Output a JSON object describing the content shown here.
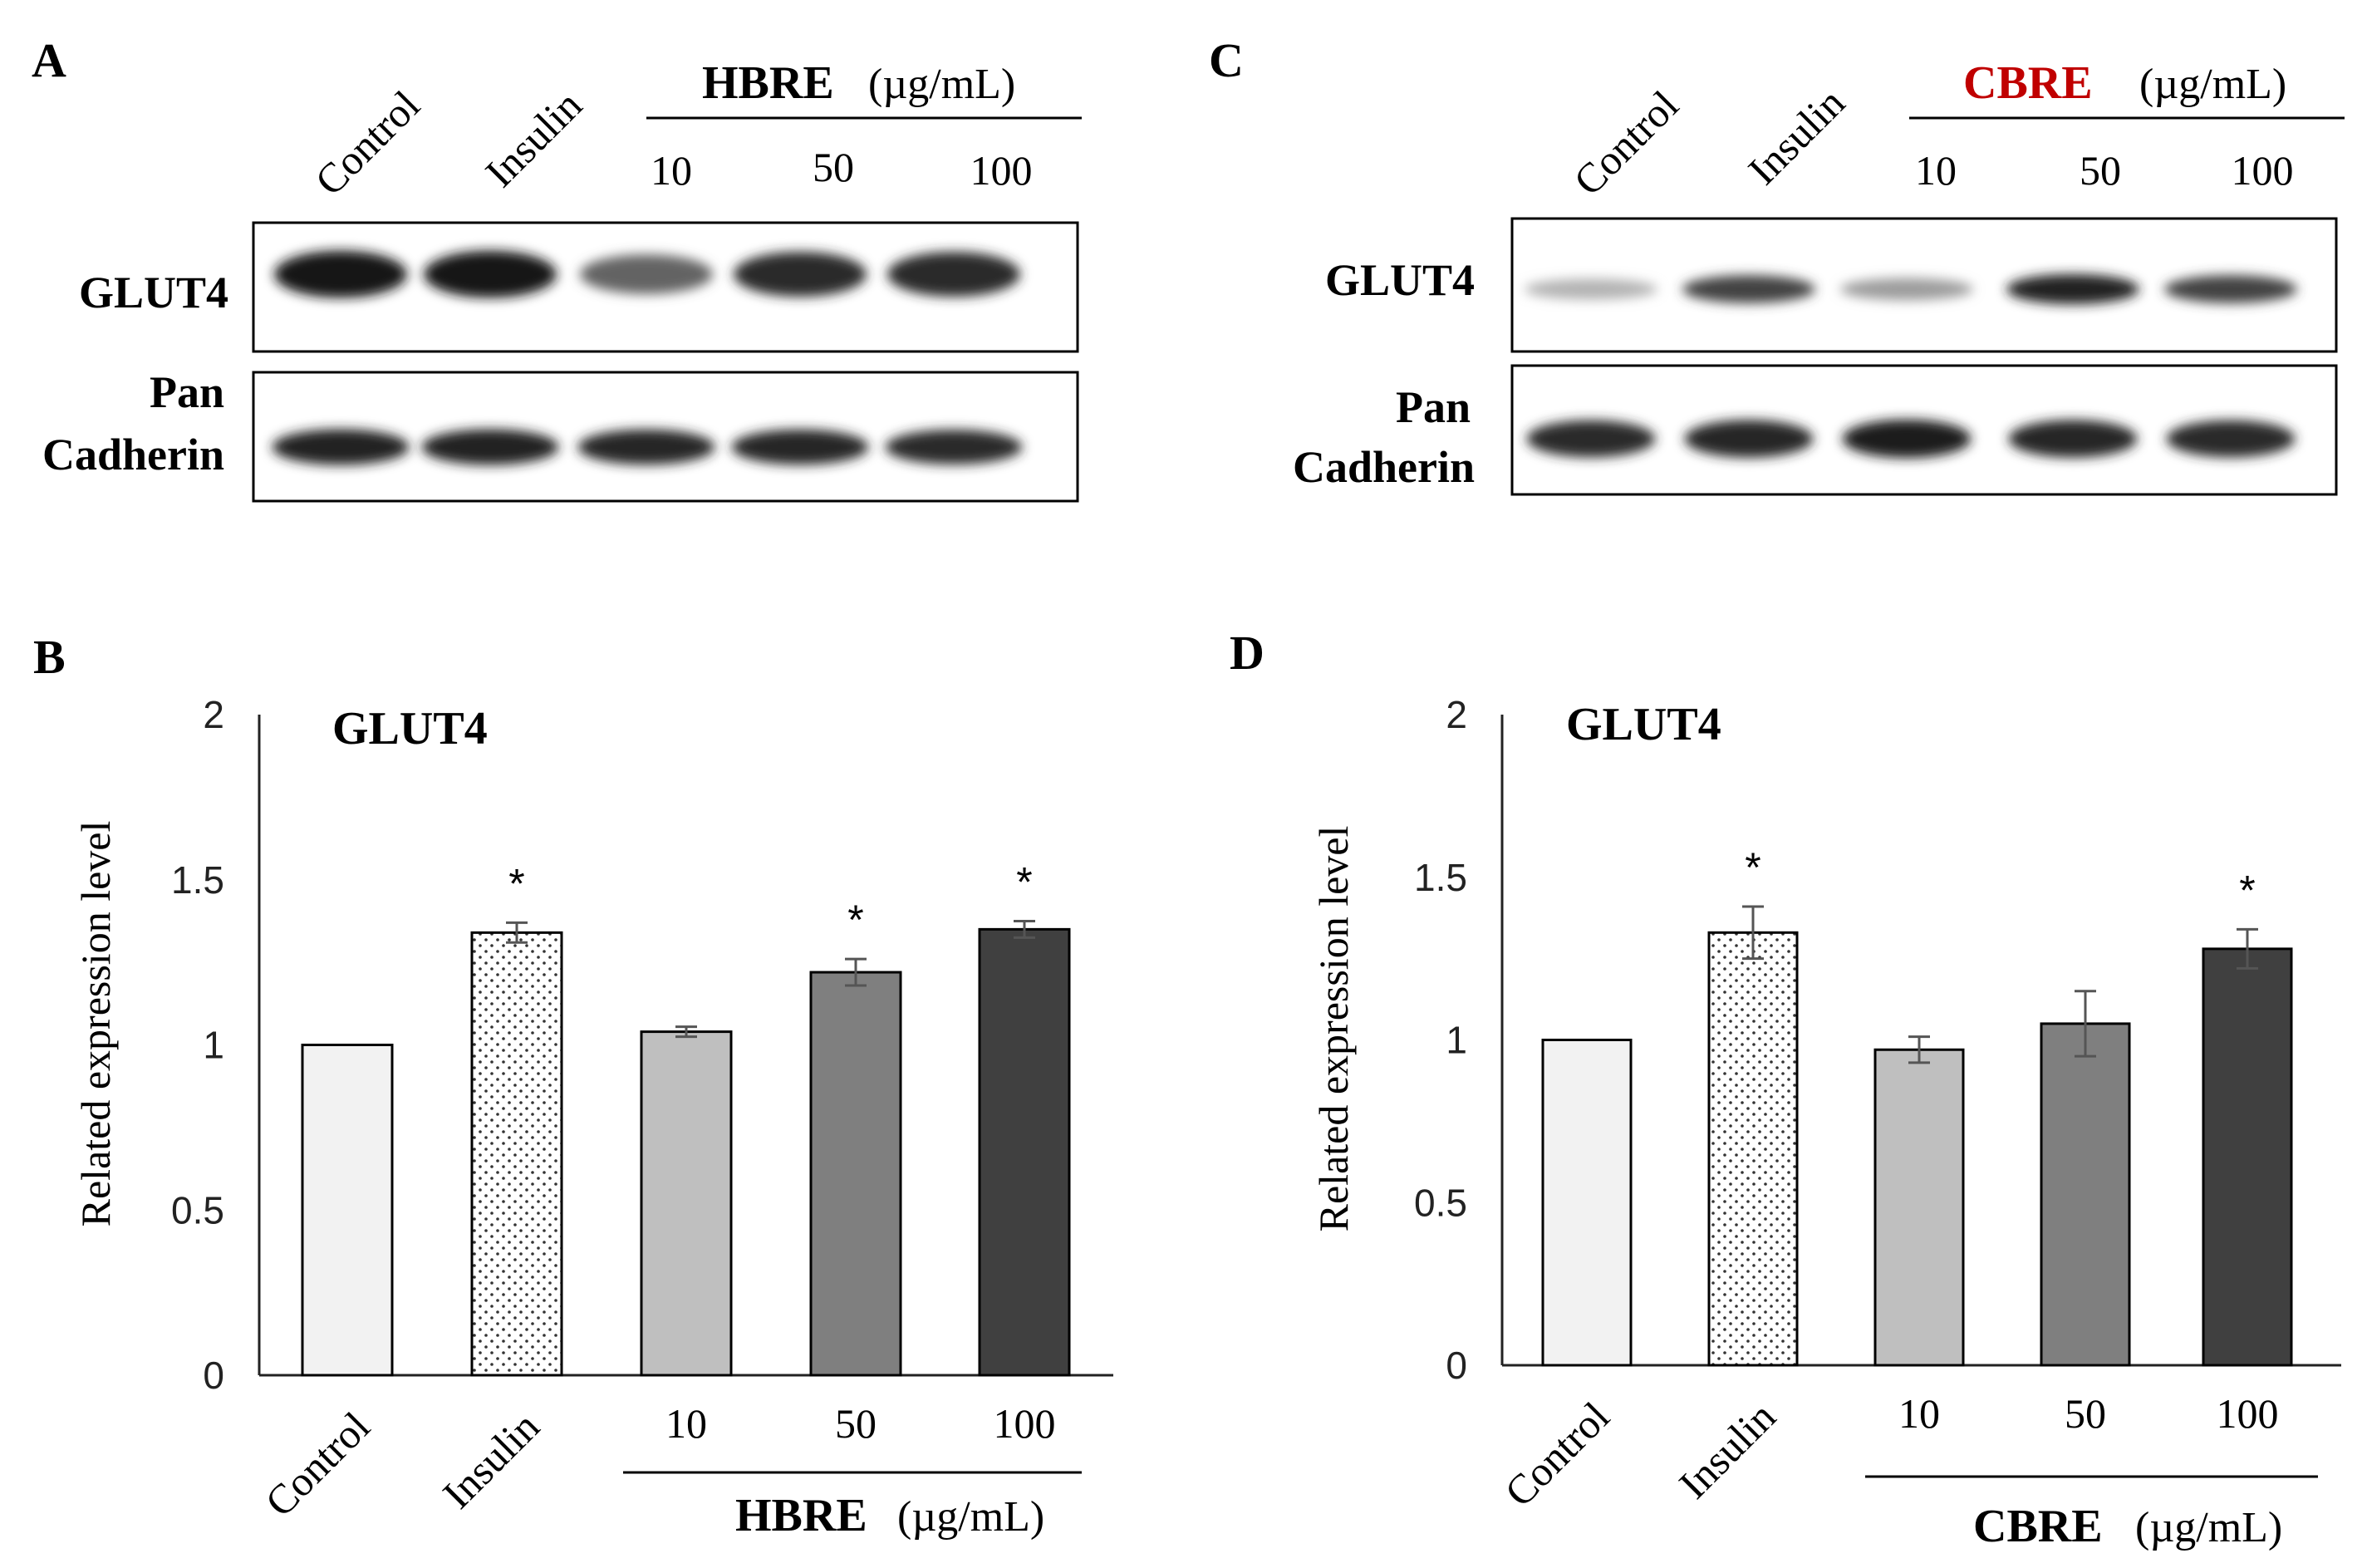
{
  "panels": {
    "A": {
      "letter": "A",
      "lanes": [
        "Control",
        "Insulin"
      ],
      "treatment": "HBRE",
      "unit": "(µg/mL)",
      "doses": [
        "10",
        "50",
        "100"
      ],
      "band_labels": {
        "glut4": "GLUT4",
        "pan_line1": "Pan",
        "pan_line2": "Cadherin"
      },
      "glut4_band_intensity": [
        0.95,
        0.95,
        0.6,
        0.85,
        0.85
      ],
      "pan_band_intensity": [
        0.9,
        0.9,
        0.88,
        0.88,
        0.85
      ]
    },
    "C": {
      "letter": "C",
      "lanes": [
        "Control",
        "Insulin"
      ],
      "treatment": "CBRE",
      "unit": "(µg/mL)",
      "treatment_color": "#c00000",
      "doses": [
        "10",
        "50",
        "100"
      ],
      "band_labels": {
        "glut4": "GLUT4",
        "pan_line1": "Pan",
        "pan_line2": "Cadherin"
      },
      "glut4_band_intensity": [
        0.25,
        0.75,
        0.35,
        0.9,
        0.75
      ],
      "pan_band_intensity": [
        0.85,
        0.88,
        0.92,
        0.88,
        0.85
      ]
    }
  },
  "chart_data": [
    {
      "panel": "B",
      "type": "bar",
      "title": "GLUT4",
      "ylabel": "Related expression level",
      "ylim": [
        0,
        2
      ],
      "yticks": [
        "0",
        "0.5",
        "1",
        "1.5",
        "2"
      ],
      "categories": [
        "Control",
        "Insulin",
        "10",
        "50",
        "100"
      ],
      "values": [
        1.0,
        1.34,
        1.04,
        1.22,
        1.35
      ],
      "errors": [
        0.0,
        0.03,
        0.015,
        0.04,
        0.025
      ],
      "significant": [
        "",
        "*",
        "",
        "*",
        "*"
      ],
      "fills": [
        "#f2f2f2",
        "dots",
        "#bfbfbf",
        "#7f7f7f",
        "#404040"
      ],
      "group_label": "HBRE",
      "group_unit": "(µg/mL)"
    },
    {
      "panel": "D",
      "type": "bar",
      "title": "GLUT4",
      "ylabel": "Related expression level",
      "ylim": [
        0,
        2
      ],
      "yticks": [
        "0",
        "0.5",
        "1",
        "1.5",
        "2"
      ],
      "categories": [
        "Control",
        "Insulin",
        "10",
        "50",
        "100"
      ],
      "values": [
        1.0,
        1.33,
        0.97,
        1.05,
        1.28
      ],
      "errors": [
        0.0,
        0.08,
        0.04,
        0.1,
        0.06
      ],
      "significant": [
        "",
        "*",
        "",
        "",
        "*"
      ],
      "fills": [
        "#f2f2f2",
        "dots",
        "#bfbfbf",
        "#7f7f7f",
        "#404040"
      ],
      "group_label": "CBRE",
      "group_unit": "(µg/mL)"
    }
  ]
}
